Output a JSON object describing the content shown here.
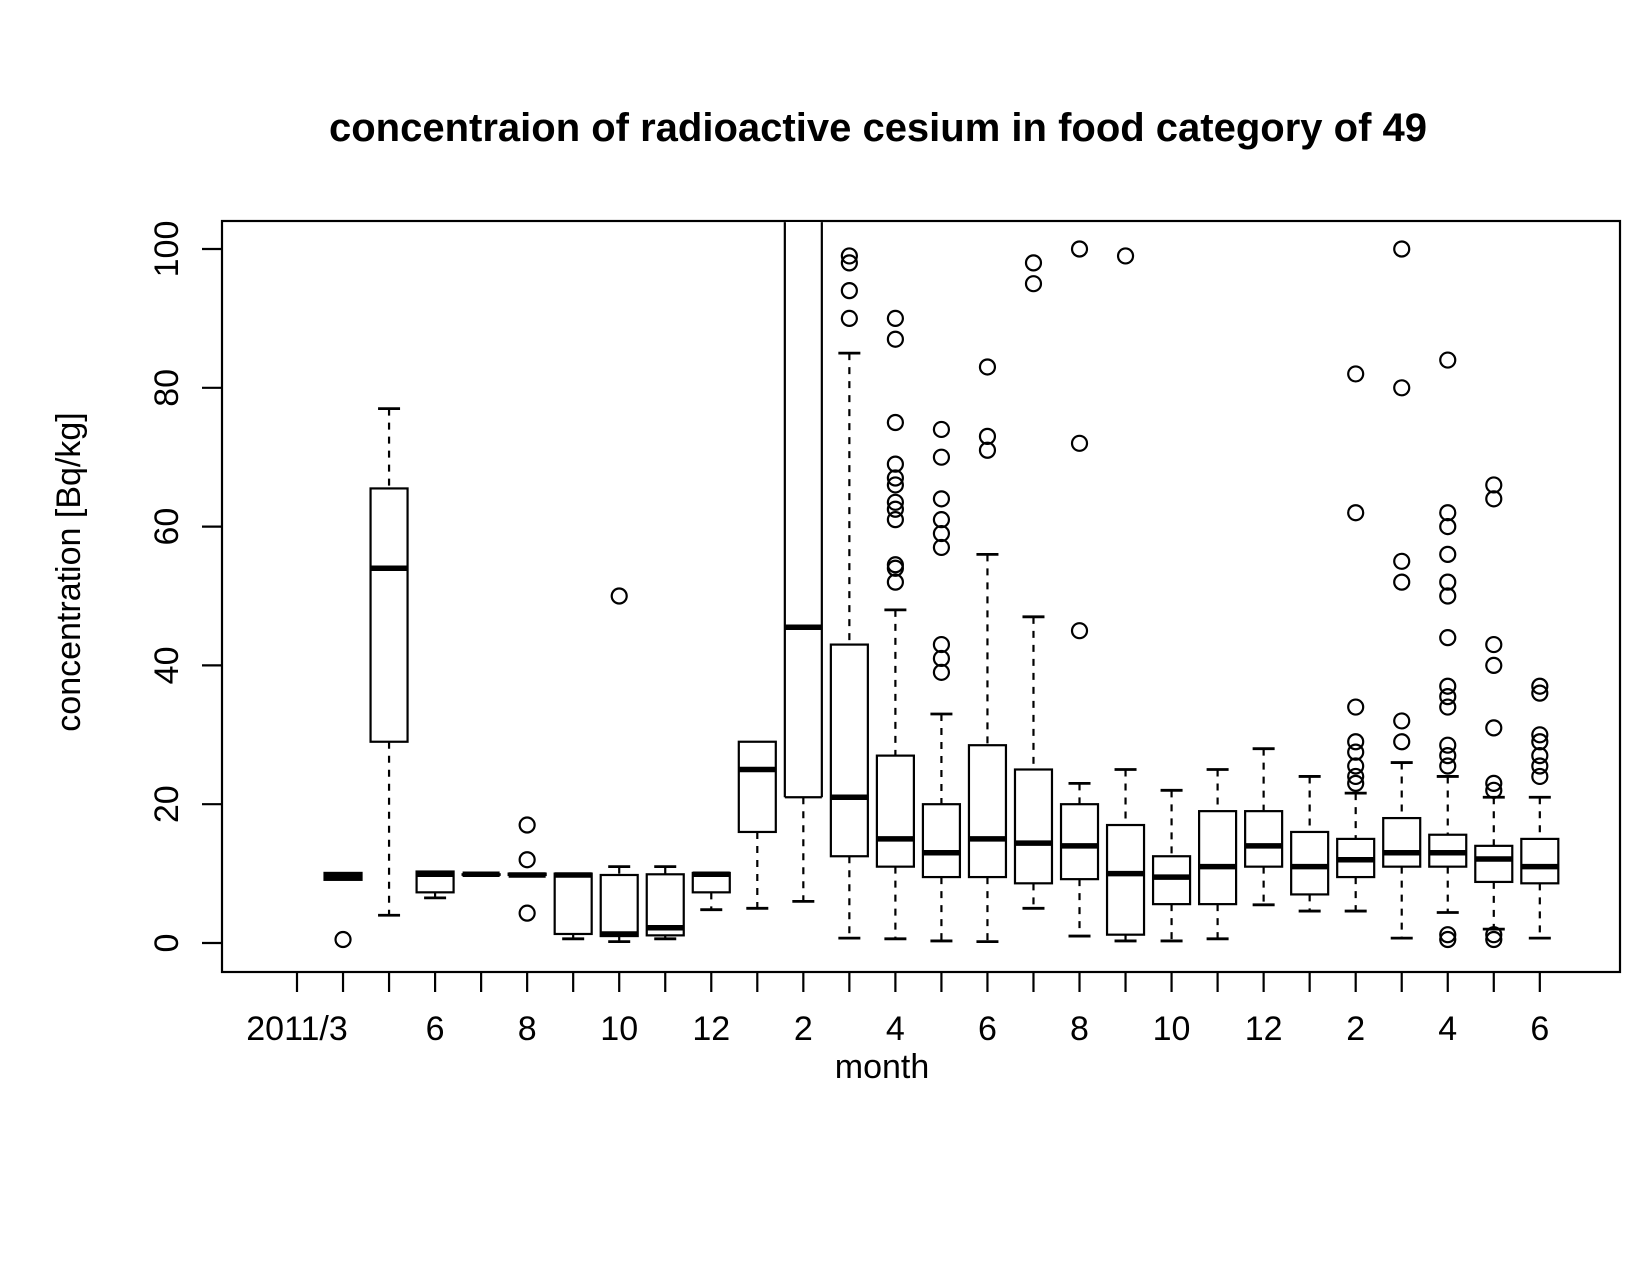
{
  "colors": {
    "foreground": "#000000",
    "background": "#ffffff"
  },
  "chart_data": {
    "type": "boxplot",
    "title": "concentraion of radioactive cesium in food category of  49",
    "xlabel": "month",
    "ylabel": "concentration [Bq/kg]",
    "ylim": [
      -4,
      104
    ],
    "yticks": [
      0,
      20,
      40,
      60,
      80,
      100
    ],
    "grid": "off",
    "legend": "none",
    "x_positions": 28,
    "x_tick_labels": [
      {
        "pos": 1,
        "label": "2011/3"
      },
      {
        "pos": 4,
        "label": "6"
      },
      {
        "pos": 6,
        "label": "8"
      },
      {
        "pos": 8,
        "label": "10"
      },
      {
        "pos": 10,
        "label": "12"
      },
      {
        "pos": 12,
        "label": "2"
      },
      {
        "pos": 14,
        "label": "4"
      },
      {
        "pos": 16,
        "label": "6"
      },
      {
        "pos": 18,
        "label": "8"
      },
      {
        "pos": 20,
        "label": "10"
      },
      {
        "pos": 22,
        "label": "12"
      },
      {
        "pos": 24,
        "label": "2"
      },
      {
        "pos": 26,
        "label": "4"
      },
      {
        "pos": 28,
        "label": "6"
      }
    ],
    "boxes": [
      {
        "pos": 2,
        "month": "2011/4",
        "min": 9.1,
        "q1": 9.1,
        "median": 9.6,
        "q3": 10.1,
        "max": 10.1,
        "outliers": [
          0.5
        ]
      },
      {
        "pos": 3,
        "month": "2011/5",
        "min": 4,
        "q1": 29,
        "median": 54,
        "q3": 65.5,
        "max": 77,
        "outliers": []
      },
      {
        "pos": 4,
        "month": "2011/6",
        "min": 6.5,
        "q1": 7.3,
        "median": 9.9,
        "q3": 10.3,
        "max": 10.3,
        "outliers": []
      },
      {
        "pos": 5,
        "month": "2011/7",
        "min": 9.9,
        "q1": 9.9,
        "median": 9.9,
        "q3": 9.9,
        "max": 9.9,
        "outliers": []
      },
      {
        "pos": 6,
        "month": "2011/8",
        "min": 9.8,
        "q1": 9.8,
        "median": 9.8,
        "q3": 10,
        "max": 10,
        "outliers": [
          17,
          12,
          4.3
        ]
      },
      {
        "pos": 7,
        "month": "2011/9",
        "min": 0.6,
        "q1": 1.3,
        "median": 9.8,
        "q3": 10,
        "max": 10,
        "outliers": []
      },
      {
        "pos": 8,
        "month": "2011/10",
        "min": 0.2,
        "q1": 1.0,
        "median": 1.3,
        "q3": 9.8,
        "max": 11,
        "outliers": [
          50
        ]
      },
      {
        "pos": 9,
        "month": "2011/11",
        "min": 0.6,
        "q1": 1.1,
        "median": 2.2,
        "q3": 9.9,
        "max": 11,
        "outliers": []
      },
      {
        "pos": 10,
        "month": "2011/12",
        "min": 4.8,
        "q1": 7.3,
        "median": 9.9,
        "q3": 10.1,
        "max": 10.1,
        "outliers": []
      },
      {
        "pos": 11,
        "month": "2012/1",
        "min": 5,
        "q1": 16,
        "median": 25,
        "q3": 29,
        "max": 29,
        "outliers": []
      },
      {
        "pos": 12,
        "month": "2012/2",
        "min": 6,
        "q1": 21,
        "median": 45.5,
        "q3": 105,
        "max": 105,
        "clipped_top": true,
        "outliers": []
      },
      {
        "pos": 13,
        "month": "2012/3",
        "min": 0.7,
        "q1": 12.5,
        "median": 21,
        "q3": 43,
        "max": 85,
        "outliers": [
          90,
          94,
          98,
          99
        ]
      },
      {
        "pos": 14,
        "month": "2012/4",
        "min": 0.6,
        "q1": 11,
        "median": 15,
        "q3": 27,
        "max": 48,
        "outliers": [
          52,
          54,
          54.5,
          61,
          62.5,
          63.5,
          66,
          67,
          69,
          75,
          87,
          90
        ]
      },
      {
        "pos": 15,
        "month": "2012/5",
        "min": 0.3,
        "q1": 9.5,
        "median": 13,
        "q3": 20,
        "max": 33,
        "outliers": [
          39,
          41,
          43,
          57,
          59,
          61,
          64,
          70,
          74
        ]
      },
      {
        "pos": 16,
        "month": "2012/6",
        "min": 0.2,
        "q1": 9.5,
        "median": 15,
        "q3": 28.5,
        "max": 56,
        "outliers": [
          71,
          73,
          83
        ]
      },
      {
        "pos": 17,
        "month": "2012/7",
        "min": 5,
        "q1": 8.6,
        "median": 14.4,
        "q3": 25,
        "max": 47,
        "outliers": [
          95,
          98
        ]
      },
      {
        "pos": 18,
        "month": "2012/8",
        "min": 1,
        "q1": 9.2,
        "median": 14,
        "q3": 20,
        "max": 23,
        "outliers": [
          45,
          72,
          100
        ]
      },
      {
        "pos": 19,
        "month": "2012/9",
        "min": 0.3,
        "q1": 1.2,
        "median": 10,
        "q3": 17,
        "max": 25,
        "outliers": [
          99
        ]
      },
      {
        "pos": 20,
        "month": "2012/10",
        "min": 0.3,
        "q1": 5.6,
        "median": 9.5,
        "q3": 12.5,
        "max": 22,
        "outliers": []
      },
      {
        "pos": 21,
        "month": "2012/11",
        "min": 0.6,
        "q1": 5.6,
        "median": 11,
        "q3": 19,
        "max": 25,
        "outliers": []
      },
      {
        "pos": 22,
        "month": "2012/12",
        "min": 5.5,
        "q1": 11,
        "median": 14,
        "q3": 19,
        "max": 28,
        "outliers": []
      },
      {
        "pos": 23,
        "month": "2013/1",
        "min": 4.6,
        "q1": 7,
        "median": 11,
        "q3": 16,
        "max": 24,
        "outliers": []
      },
      {
        "pos": 24,
        "month": "2013/2",
        "min": 4.6,
        "q1": 9.5,
        "median": 12,
        "q3": 15,
        "max": 21.6,
        "outliers": [
          23,
          24,
          25.5,
          27.5,
          29,
          34,
          62,
          82
        ]
      },
      {
        "pos": 25,
        "month": "2013/3",
        "min": 0.7,
        "q1": 11,
        "median": 13,
        "q3": 18,
        "max": 26,
        "outliers": [
          29,
          32,
          52,
          55,
          80,
          100
        ]
      },
      {
        "pos": 26,
        "month": "2013/4",
        "min": 4.4,
        "q1": 11,
        "median": 13,
        "q3": 15.6,
        "max": 24,
        "outliers": [
          0.5,
          1.2,
          25.5,
          27,
          28.5,
          34,
          35.5,
          37,
          44,
          50,
          52,
          56,
          60,
          62,
          84
        ]
      },
      {
        "pos": 27,
        "month": "2013/5",
        "min": 2,
        "q1": 8.8,
        "median": 12.1,
        "q3": 14,
        "max": 21,
        "outliers": [
          0.5,
          1.2,
          22,
          23,
          31,
          40,
          43,
          64,
          66
        ]
      },
      {
        "pos": 28,
        "month": "2013/6",
        "min": 0.7,
        "q1": 8.6,
        "median": 11,
        "q3": 15,
        "max": 21,
        "outliers": [
          24,
          25.5,
          27,
          29,
          30,
          36,
          37
        ]
      }
    ]
  }
}
